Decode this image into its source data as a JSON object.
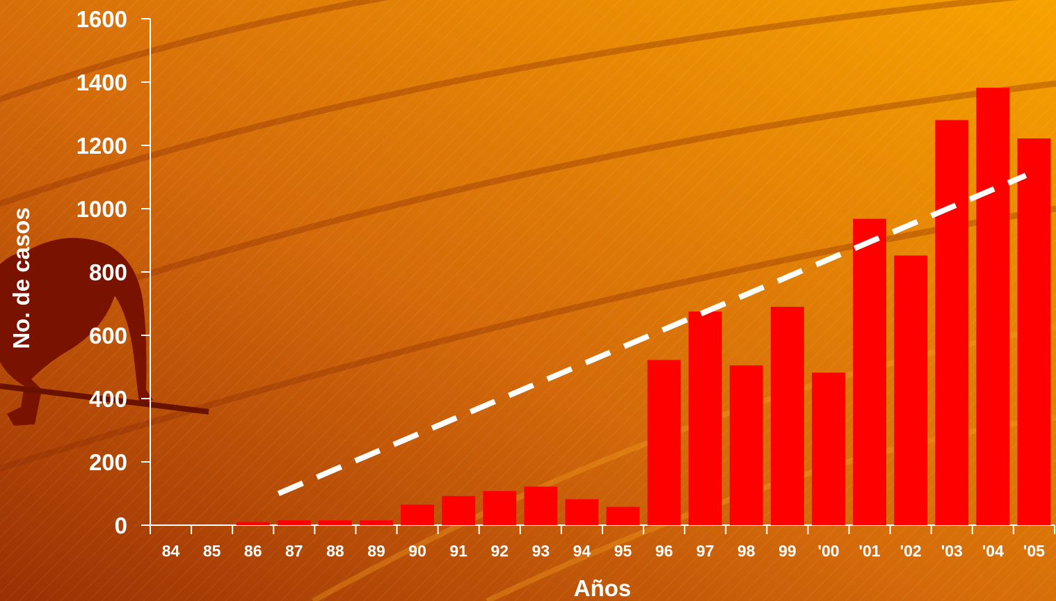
{
  "chart_data": {
    "type": "bar",
    "xlabel": "Años",
    "ylabel": "No. de casos",
    "ylim": [
      0,
      1600
    ],
    "yticks": [
      "0",
      "200",
      "400",
      "600",
      "800",
      "1000",
      "1200",
      "1400",
      "1600"
    ],
    "categories": [
      "84",
      "85",
      "86",
      "87",
      "88",
      "89",
      "90",
      "91",
      "92",
      "93",
      "94",
      "95",
      "96",
      "97",
      "98",
      "99",
      "'00",
      "'01",
      "'02",
      "'03",
      "'04",
      "'05"
    ],
    "values": [
      0,
      0,
      10,
      15,
      15,
      15,
      65,
      92,
      108,
      122,
      82,
      58,
      522,
      675,
      505,
      690,
      482,
      968,
      852,
      1280,
      1382,
      1222
    ],
    "trendline": {
      "style": "dashed",
      "from": {
        "category": "87",
        "value": 100
      },
      "to": {
        "category": "'05",
        "value": 1105
      }
    },
    "grid": false,
    "legend": "none",
    "colors": {
      "bar": "#ff0000",
      "trendline": "#ffffff",
      "axis": "#ffffff",
      "background_start": "#a83a05",
      "background_end": "#f5a000"
    }
  }
}
